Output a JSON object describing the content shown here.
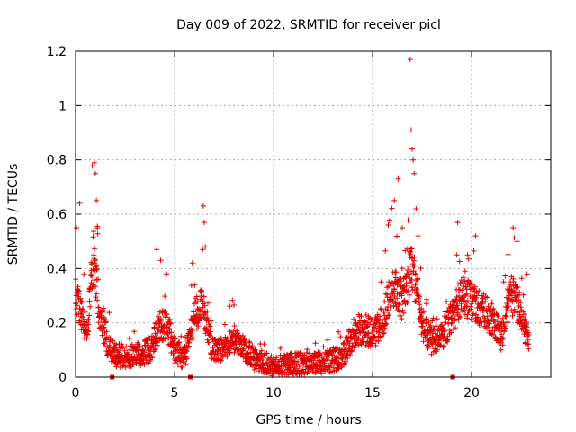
{
  "chart_data": {
    "type": "scatter",
    "title": "Day 009 of 2022, SRMTID for receiver picl",
    "xlabel": "GPS time / hours",
    "ylabel": "SRMTID / TECUs",
    "xlim": [
      0,
      24
    ],
    "ylim": [
      0,
      1.2
    ],
    "x_ticks": [
      0,
      5,
      10,
      15,
      20
    ],
    "x_tick_labels": [
      "0",
      "5",
      "10",
      "15",
      "20"
    ],
    "y_ticks": [
      0,
      0.2,
      0.4,
      0.6,
      0.8,
      1.0,
      1.2
    ],
    "y_tick_labels": [
      "0",
      "0.2",
      "0.4",
      "0.6",
      "0.8",
      "1",
      "1.2"
    ],
    "grid": true,
    "marker": "plus",
    "color": "#e00000",
    "profile": [
      [
        0.0,
        0.32
      ],
      [
        0.3,
        0.22
      ],
      [
        0.6,
        0.18
      ],
      [
        0.9,
        0.45
      ],
      [
        1.2,
        0.25
      ],
      [
        1.6,
        0.12
      ],
      [
        2.0,
        0.08
      ],
      [
        3.0,
        0.08
      ],
      [
        3.8,
        0.1
      ],
      [
        4.2,
        0.18
      ],
      [
        4.6,
        0.2
      ],
      [
        5.0,
        0.1
      ],
      [
        5.5,
        0.07
      ],
      [
        6.0,
        0.22
      ],
      [
        6.4,
        0.28
      ],
      [
        6.9,
        0.1
      ],
      [
        7.5,
        0.1
      ],
      [
        8.0,
        0.14
      ],
      [
        9.0,
        0.07
      ],
      [
        10.0,
        0.04
      ],
      [
        11.0,
        0.05
      ],
      [
        12.0,
        0.05
      ],
      [
        13.0,
        0.06
      ],
      [
        13.5,
        0.08
      ],
      [
        14.0,
        0.15
      ],
      [
        14.5,
        0.18
      ],
      [
        15.0,
        0.16
      ],
      [
        15.5,
        0.2
      ],
      [
        16.0,
        0.35
      ],
      [
        16.5,
        0.28
      ],
      [
        17.0,
        0.42
      ],
      [
        17.5,
        0.2
      ],
      [
        18.0,
        0.13
      ],
      [
        18.5,
        0.15
      ],
      [
        19.0,
        0.22
      ],
      [
        19.5,
        0.3
      ],
      [
        20.0,
        0.28
      ],
      [
        20.5,
        0.25
      ],
      [
        21.0,
        0.22
      ],
      [
        21.5,
        0.15
      ],
      [
        22.0,
        0.3
      ],
      [
        22.5,
        0.25
      ],
      [
        22.9,
        0.12
      ]
    ],
    "spikes": [
      [
        0.2,
        0.64
      ],
      [
        0.05,
        0.55
      ],
      [
        0.95,
        0.79
      ],
      [
        1.0,
        0.75
      ],
      [
        1.05,
        0.65
      ],
      [
        1.1,
        0.55
      ],
      [
        4.1,
        0.47
      ],
      [
        4.3,
        0.43
      ],
      [
        4.6,
        0.38
      ],
      [
        5.9,
        0.42
      ],
      [
        6.45,
        0.63
      ],
      [
        6.5,
        0.57
      ],
      [
        6.55,
        0.48
      ],
      [
        16.1,
        0.65
      ],
      [
        16.3,
        0.73
      ],
      [
        16.5,
        0.55
      ],
      [
        16.9,
        1.17
      ],
      [
        16.95,
        0.91
      ],
      [
        17.0,
        0.84
      ],
      [
        17.05,
        0.8
      ],
      [
        17.1,
        0.75
      ],
      [
        17.2,
        0.62
      ],
      [
        17.3,
        0.52
      ],
      [
        19.3,
        0.57
      ],
      [
        20.2,
        0.52
      ],
      [
        19.8,
        0.45
      ],
      [
        22.1,
        0.55
      ],
      [
        22.3,
        0.5
      ],
      [
        22.8,
        0.38
      ]
    ],
    "zero_markers": [
      1.85,
      5.8,
      19.05
    ],
    "jitter": 0.055,
    "points_per_hour": 90
  }
}
